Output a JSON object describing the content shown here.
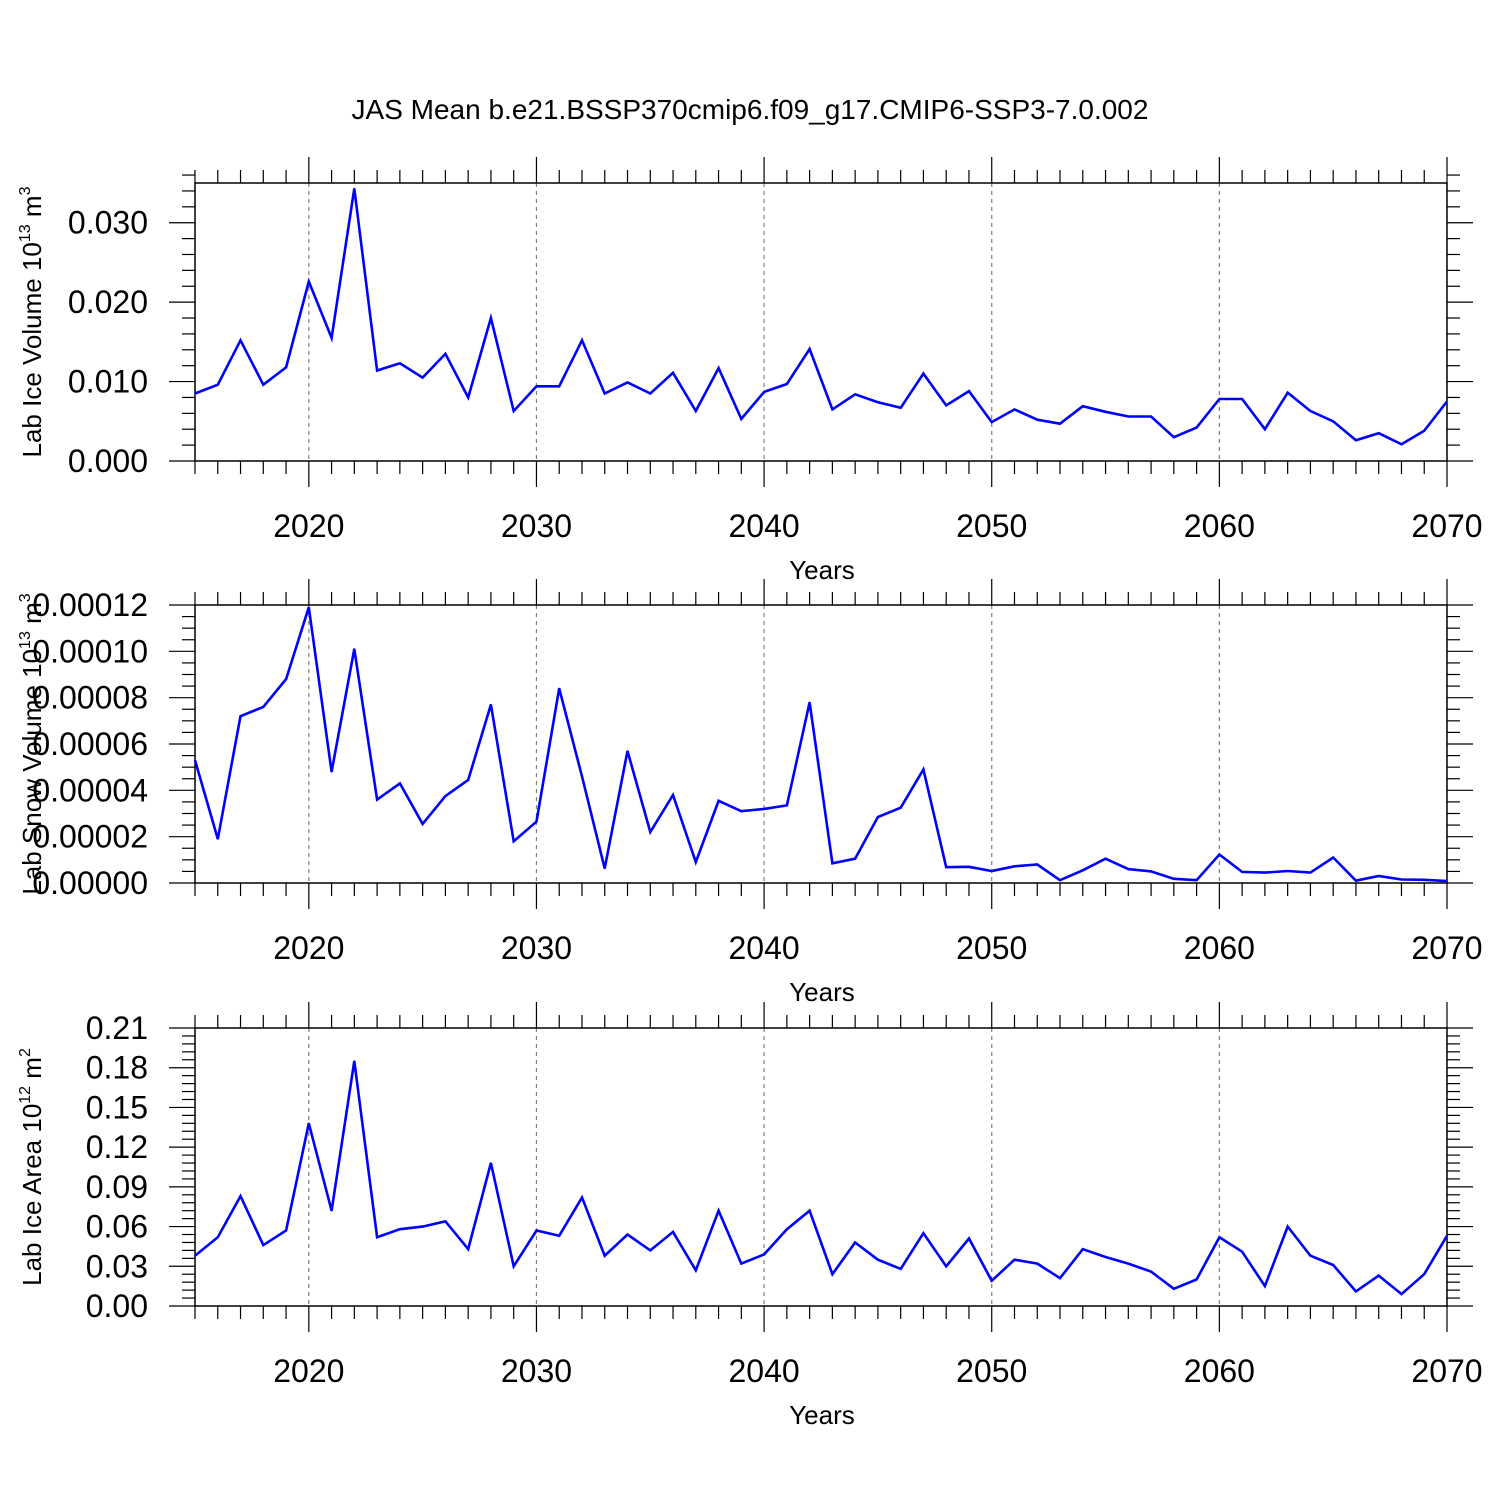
{
  "figure": {
    "title": "JAS Mean b.e21.BSSP370cmip6.f09_g17.CMIP6-SSP3-7.0.002",
    "line_color": "#0000ff",
    "gridline_color": "#808080"
  },
  "chart_data": [
    {
      "type": "line",
      "title": "JAS Mean b.e21.BSSP370cmip6.f09_g17.CMIP6-SSP3-7.0.002",
      "xlabel": "Years",
      "ylabel": "Lab Ice Volume 10",
      "ylabel_exp": "13",
      "ylabel_unit": " m",
      "ylabel_unit_exp": "3",
      "xlim": [
        2015,
        2070
      ],
      "ylim": [
        0,
        0.035
      ],
      "xticks": [
        2020,
        2030,
        2040,
        2050,
        2060,
        2070
      ],
      "yticks": [
        0.0,
        0.01,
        0.02,
        0.03
      ],
      "ytick_labels": [
        "0.000",
        "0.010",
        "0.020",
        "0.030"
      ],
      "grid": "vertical dashed at major x ticks",
      "series": [
        {
          "x": [
            2015,
            2016,
            2017,
            2018,
            2019,
            2020,
            2021,
            2022,
            2023,
            2024,
            2025,
            2026,
            2027,
            2028,
            2029,
            2030,
            2031,
            2032,
            2033,
            2034,
            2035,
            2036,
            2037,
            2038,
            2039,
            2040,
            2041,
            2042,
            2043,
            2044,
            2045,
            2046,
            2047,
            2048,
            2049,
            2050,
            2051,
            2052,
            2053,
            2054,
            2055,
            2056,
            2057,
            2058,
            2059,
            2060,
            2061,
            2062,
            2063,
            2064,
            2065,
            2066,
            2067,
            2068,
            2069,
            2070
          ],
          "values": [
            0.0085,
            0.0096,
            0.0152,
            0.0096,
            0.0118,
            0.0226,
            0.0155,
            0.0343,
            0.0114,
            0.0123,
            0.0105,
            0.0135,
            0.008,
            0.018,
            0.0063,
            0.0094,
            0.0094,
            0.0152,
            0.0085,
            0.0099,
            0.0085,
            0.0111,
            0.0063,
            0.0117,
            0.0053,
            0.0087,
            0.0097,
            0.0141,
            0.0065,
            0.0084,
            0.0074,
            0.0067,
            0.011,
            0.007,
            0.0088,
            0.0049,
            0.0065,
            0.0052,
            0.0047,
            0.0069,
            0.0062,
            0.0056,
            0.0056,
            0.003,
            0.0042,
            0.0078,
            0.0078,
            0.004,
            0.0086,
            0.0063,
            0.005,
            0.0026,
            0.0035,
            0.0021,
            0.0038,
            0.0075
          ]
        }
      ]
    },
    {
      "type": "line",
      "xlabel": "Years",
      "ylabel": "Lab Snow Volume 10",
      "ylabel_exp": "13",
      "ylabel_unit": " m",
      "ylabel_unit_exp": "3",
      "xlim": [
        2015,
        2070
      ],
      "ylim": [
        0,
        0.00012
      ],
      "xticks": [
        2020,
        2030,
        2040,
        2050,
        2060,
        2070
      ],
      "yticks": [
        0.0,
        2e-05,
        4e-05,
        6e-05,
        8e-05,
        0.0001,
        0.00012
      ],
      "ytick_labels": [
        "0.00000",
        "0.00002",
        "0.00004",
        "0.00006",
        "0.00008",
        "0.00010",
        "0.00012"
      ],
      "grid": "vertical dashed at major x ticks",
      "series": [
        {
          "x": [
            2015,
            2016,
            2017,
            2018,
            2019,
            2020,
            2021,
            2022,
            2023,
            2024,
            2025,
            2026,
            2027,
            2028,
            2029,
            2030,
            2031,
            2032,
            2033,
            2034,
            2035,
            2036,
            2037,
            2038,
            2039,
            2040,
            2041,
            2042,
            2043,
            2044,
            2045,
            2046,
            2047,
            2048,
            2049,
            2050,
            2051,
            2052,
            2053,
            2054,
            2055,
            2056,
            2057,
            2058,
            2059,
            2060,
            2061,
            2062,
            2063,
            2064,
            2065,
            2066,
            2067,
            2068,
            2069,
            2070
          ],
          "values": [
            5.3e-05,
            1.9e-05,
            7.2e-05,
            7.6e-05,
            8.8e-05,
            0.000119,
            4.8e-05,
            0.000101,
            3.6e-05,
            4.3e-05,
            2.55e-05,
            3.75e-05,
            4.45e-05,
            7.7e-05,
            1.8e-05,
            2.65e-05,
            8.4e-05,
            4.6e-05,
            6.3e-06,
            5.7e-05,
            2.2e-05,
            3.8e-05,
            9e-06,
            3.55e-05,
            3.1e-05,
            3.2e-05,
            3.35e-05,
            7.8e-05,
            8.5e-06,
            1.05e-05,
            2.85e-05,
            3.25e-05,
            4.9e-05,
            6.8e-06,
            7e-06,
            5.2e-06,
            7.2e-06,
            8e-06,
            1.2e-06,
            5.5e-06,
            1.05e-05,
            6e-06,
            5e-06,
            1.8e-06,
            1.2e-06,
            1.23e-05,
            4.8e-06,
            4.5e-06,
            5.2e-06,
            4.5e-06,
            1.1e-05,
            1e-06,
            3e-06,
            1.5e-06,
            1.4e-06,
            8e-07
          ]
        }
      ]
    },
    {
      "type": "line",
      "xlabel": "Years",
      "ylabel": "Lab Ice Area 10",
      "ylabel_exp": "12",
      "ylabel_unit": " m",
      "ylabel_unit_exp": "2",
      "xlim": [
        2015,
        2070
      ],
      "ylim": [
        0,
        0.21
      ],
      "xticks": [
        2020,
        2030,
        2040,
        2050,
        2060,
        2070
      ],
      "yticks": [
        0.0,
        0.03,
        0.06,
        0.09,
        0.12,
        0.15,
        0.18,
        0.21
      ],
      "ytick_labels": [
        "0.00",
        "0.03",
        "0.06",
        "0.09",
        "0.12",
        "0.15",
        "0.18",
        "0.21"
      ],
      "grid": "vertical dashed at major x ticks",
      "series": [
        {
          "x": [
            2015,
            2016,
            2017,
            2018,
            2019,
            2020,
            2021,
            2022,
            2023,
            2024,
            2025,
            2026,
            2027,
            2028,
            2029,
            2030,
            2031,
            2032,
            2033,
            2034,
            2035,
            2036,
            2037,
            2038,
            2039,
            2040,
            2041,
            2042,
            2043,
            2044,
            2045,
            2046,
            2047,
            2048,
            2049,
            2050,
            2051,
            2052,
            2053,
            2054,
            2055,
            2056,
            2057,
            2058,
            2059,
            2060,
            2061,
            2062,
            2063,
            2064,
            2065,
            2066,
            2067,
            2068,
            2069,
            2070
          ],
          "values": [
            0.038,
            0.052,
            0.083,
            0.046,
            0.057,
            0.138,
            0.072,
            0.185,
            0.052,
            0.058,
            0.06,
            0.064,
            0.043,
            0.108,
            0.03,
            0.057,
            0.053,
            0.082,
            0.038,
            0.054,
            0.042,
            0.056,
            0.027,
            0.072,
            0.032,
            0.039,
            0.058,
            0.072,
            0.024,
            0.048,
            0.035,
            0.028,
            0.055,
            0.03,
            0.051,
            0.019,
            0.035,
            0.032,
            0.021,
            0.043,
            0.037,
            0.032,
            0.026,
            0.013,
            0.02,
            0.052,
            0.041,
            0.015,
            0.06,
            0.038,
            0.031,
            0.011,
            0.023,
            0.009,
            0.024,
            0.053
          ]
        }
      ]
    }
  ]
}
